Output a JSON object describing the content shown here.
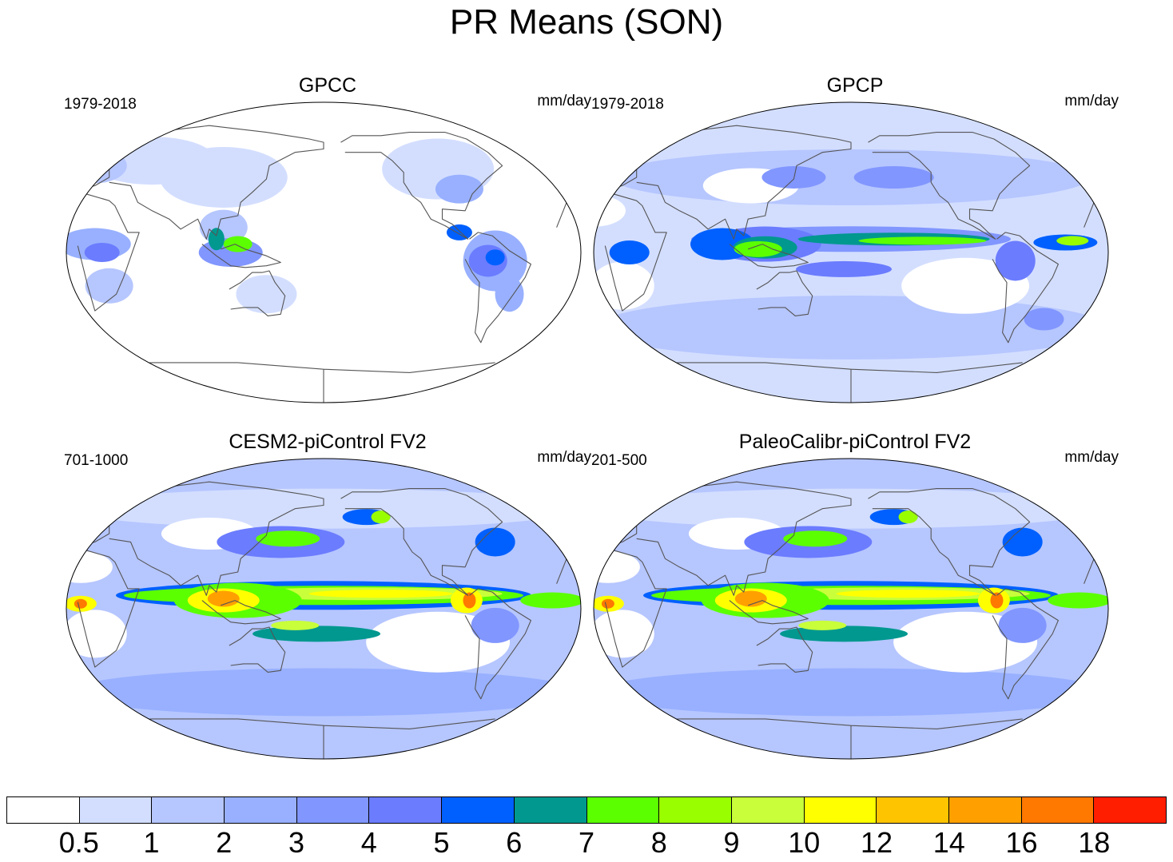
{
  "title": "PR Means (SON)",
  "panels": [
    {
      "title": "GPCC",
      "period": "1979-2018",
      "units": "mm/day",
      "field": "obs_land"
    },
    {
      "title": "GPCP",
      "period": "1979-2018",
      "units": "mm/day",
      "field": "obs_full"
    },
    {
      "title": "CESM2-piControl FV2",
      "period": "701-1000",
      "units": "mm/day",
      "field": "model"
    },
    {
      "title": "PaleoCalibr-piControl FV2",
      "period": "201-500",
      "units": "mm/day",
      "field": "model"
    }
  ],
  "colorbar": {
    "levels": [
      "0.5",
      "1",
      "2",
      "3",
      "4",
      "5",
      "6",
      "7",
      "8",
      "9",
      "10",
      "12",
      "14",
      "16",
      "18"
    ],
    "colors": [
      "#ffffff",
      "#d3deff",
      "#b6c6ff",
      "#98b0ff",
      "#8196ff",
      "#6b7cff",
      "#0060ff",
      "#00988f",
      "#5cff00",
      "#99ff00",
      "#c8ff3a",
      "#ffff00",
      "#ffc400",
      "#ffa000",
      "#ff7800",
      "#ff1e00"
    ]
  }
}
